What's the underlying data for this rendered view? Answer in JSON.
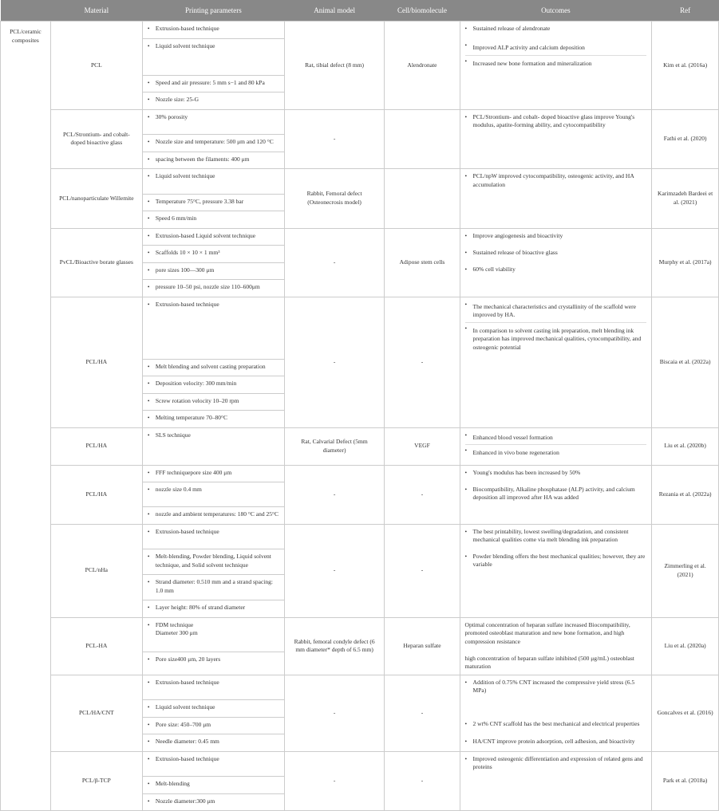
{
  "headers": [
    "",
    "Material",
    "Printing parameters",
    "Animal model",
    "Cell/biomolecule",
    "Outcomes",
    "Ref"
  ],
  "group_label": "PCL/ceramic composites",
  "rows": [
    {
      "material": "PCL",
      "params": [
        "Extrusion-based technique",
        "Liquid solvent technique",
        "Speed and air pressure: 5 mm s−1 and 80 kPa",
        "Nozzle size: 25-G"
      ],
      "animal": "Rat, tibial defect (8 mm)",
      "cell": "Alendronate",
      "outcomes": [
        "Sustained release of alendronate",
        "Improved ALP activity and calcium deposition",
        "Increased new bone formation and mineralization"
      ],
      "outcomes_merge": [
        [
          0
        ],
        [
          1,
          2
        ],
        [],
        []
      ],
      "ref": "Kim et al. (2016a)"
    },
    {
      "material": "PCL/Strontium- and cobalt- doped bioactive glass",
      "params": [
        "30% porosity",
        "Nozzle size and temperature: 500 μm and 120 °C",
        "spacing between the filaments: 400 μm"
      ],
      "animal": "-",
      "cell": "",
      "outcomes": [
        "PCL/Strontium- and cobalt- doped bioactive glass improve Young's modulus, apatite-forming ability, and cytocompatibility"
      ],
      "outcomes_merge": [
        [
          0
        ],
        [],
        []
      ],
      "ref": "Fathi et al. (2020)"
    },
    {
      "material": "PCL/nanoparticulate Willemite",
      "params": [
        "Liquid solvent technique",
        "Temperature 75°C, pressure 3.38 bar",
        "Speed 6 mm/min"
      ],
      "animal": "Rabbit, Femoral defect (Osteonecrosis model)",
      "cell": "",
      "outcomes": [
        "PCL/npW improved cytocompatibility, osteogenic activity, and HA accumulation"
      ],
      "outcomes_merge": [
        [
          0
        ],
        [],
        []
      ],
      "ref": "Karimzadeh Bardeei et al. (2021)"
    },
    {
      "material": "PvCL/Bioactive borate glasses",
      "params": [
        "Extrusion-based Liquid solvent technique",
        "Scaffolds 10 × 10 × 1 mm³",
        "pore sizes 100—300 μm",
        "pressure 10–50 psi, nozzle size 110–600μm"
      ],
      "animal": "-",
      "cell": "Adipose stem cells",
      "outcomes": [
        "Improve angiogenesis and bioactivity",
        "Sustained release of bioactive glass",
        "60% cell viability"
      ],
      "outcomes_merge": [
        [
          0
        ],
        [
          1
        ],
        [
          2
        ],
        []
      ],
      "ref": "Murphy et al. (2017a)"
    },
    {
      "material": "PCL/HA",
      "params": [
        "Extrusion-based technique",
        "Melt blending and solvent casting preparation",
        "Deposition velocity: 300 mm/min",
        "Screw rotation velocity 10–20 rpm",
        "Melting temperature 70–80°C"
      ],
      "animal": "-",
      "cell": "-",
      "outcomes": [
        "The mechanical characteristics and crystallinity of the scaffold were improved by HA.",
        "In comparison to solvent casting ink preparation, melt blending ink preparation has improved mechanical qualities, cytocompatibility, and osteogenic potential"
      ],
      "outcomes_merge": [
        [
          0,
          1
        ],
        [],
        [],
        [],
        []
      ],
      "ref": "Biscaia et al. (2022a)"
    },
    {
      "material": "PCL/HA",
      "params": [
        "SLS technique"
      ],
      "animal": "Rat, Calvarial Defect (5mm diameter)",
      "cell": "VEGF",
      "outcomes": [
        "Enhanced blood vessel formation",
        "Enhanced in vivo bone regeneration"
      ],
      "outcomes_merge": [
        [
          0,
          1
        ]
      ],
      "ref": "Liu et al. (2020b)"
    },
    {
      "material": "PCL/HA",
      "params": [
        "FFF techniquepore size 400 μm",
        "nozzle size 0.4 mm",
        "nozzle and ambient temperatures: 180 °C and 25°C"
      ],
      "animal": "-",
      "cell": "-",
      "outcomes": [
        "Young's modulus has been increased by 50%",
        "Biocompatibility, Alkaline phosphatase (ALP) activity, and calcium deposition all improved after HA was added"
      ],
      "outcomes_merge": [
        [
          0
        ],
        [
          1
        ],
        []
      ],
      "ref": "Rezania et al. (2022a)"
    },
    {
      "material": "PCL/nHa",
      "params": [
        "Extrusion-based technique",
        "Melt-blending, Powder blending, Liquid solvent technique, and Solid solvent technique",
        "Strand diameter: 0.510 mm and a strand spacing: 1.0 mm",
        "Layer height: 80% of strand diameter"
      ],
      "animal": "-",
      "cell": "-",
      "outcomes": [
        "The best printability, lowest swelling/degradation, and consistent mechanical qualities come via melt blending ink preparation",
        "Powder blending offers the best mechanical qualities; however, they are variable"
      ],
      "outcomes_merge": [
        [
          0
        ],
        [
          1
        ],
        [],
        []
      ],
      "ref": "Zimmerling et al. (2021)"
    },
    {
      "material": "PCL-HA",
      "params_plain": [
        "FDM technique\nDiameter 300 μm",
        "Pore size400 μm, 20 layers"
      ],
      "animal": "Rabbit, femoral condyle defect (6 mm diameter* depth of 6.5 mm)",
      "cell": "Heparan sulfate",
      "outcomes_plain": "Optimal concentration of heparan sulfate increased Biocompatibility, promoted osteoblast maturation and new bone formation, and high compression resistance\n\nhigh concentration of heparan sulfate inhibited (500 μg/mL) osteoblast maturation",
      "ref": "Liu et al. (2020a)"
    },
    {
      "material": "PCL/HA/CNT",
      "params": [
        "Extrusion-based technique",
        "Liquid solvent technique",
        "Pore size: 450–700 μm",
        "Needle diameter: 0.45 mm"
      ],
      "animal": "-",
      "cell": "-",
      "outcomes": [
        "Addition of 0.75% CNT increased the compressive yield stress (6.5 MPa)",
        "",
        "2 wt% CNT scaffold has the best mechanical and electrical properties",
        "HA/CNT improve protein adsorption, cell adhesion, and bioactivity"
      ],
      "outcomes_merge": [
        [
          0
        ],
        [
          1
        ],
        [
          2
        ],
        [
          3
        ]
      ],
      "ref": "Goncalves et al. (2016)"
    },
    {
      "material": "PCL/β-TCP",
      "params": [
        "Extrusion-based technique",
        "Melt-blending",
        "Nozzle diameter:300 μm"
      ],
      "animal": "-",
      "cell": "-",
      "outcomes": [
        "Improved osteogenic differentiation and expression of related gens and proteins"
      ],
      "outcomes_merge": [
        [
          0
        ],
        [],
        []
      ],
      "ref": "Park et al. (2018a)"
    }
  ]
}
